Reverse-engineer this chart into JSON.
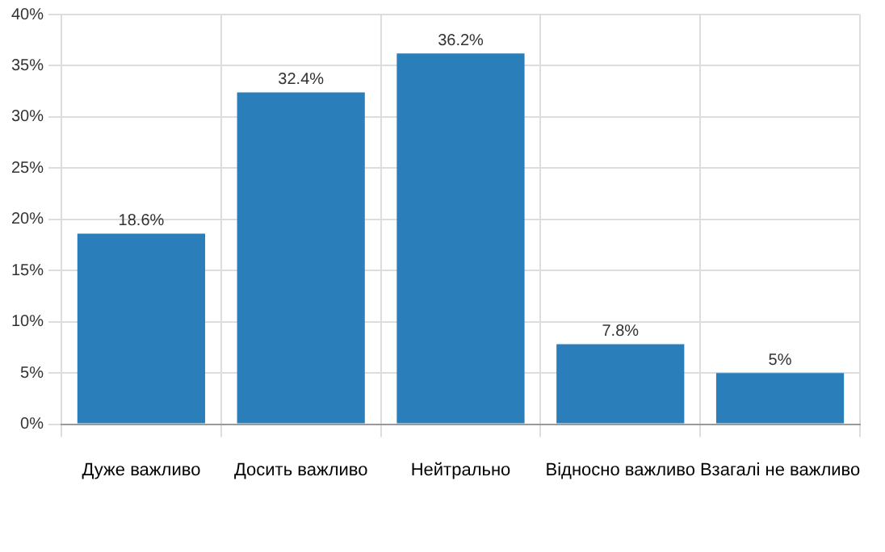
{
  "chart_data": {
    "type": "bar",
    "categories": [
      "Дуже важливо",
      "Досить важливо",
      "Нейтрально",
      "Відносно важливо",
      "Взагалі не важливо"
    ],
    "values": [
      18.6,
      32.4,
      36.2,
      7.8,
      5
    ],
    "value_labels": [
      "18.6%",
      "32.4%",
      "36.2%",
      "7.8%",
      "5%"
    ],
    "color": "#2a7fba",
    "ylim": [
      0,
      40
    ],
    "yticks": [
      {
        "value": 0,
        "label": "0%"
      },
      {
        "value": 5,
        "label": "5%"
      },
      {
        "value": 10,
        "label": "10%"
      },
      {
        "value": 15,
        "label": "15%"
      },
      {
        "value": 20,
        "label": "20%"
      },
      {
        "value": 25,
        "label": "25%"
      },
      {
        "value": 30,
        "label": "30%"
      },
      {
        "value": 35,
        "label": "35%"
      },
      {
        "value": 40,
        "label": "40%"
      }
    ],
    "grid": true
  }
}
